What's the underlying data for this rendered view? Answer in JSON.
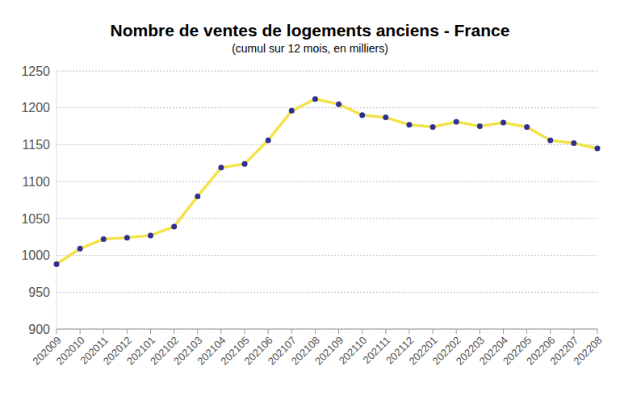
{
  "chart_data": {
    "type": "line",
    "title": "Nombre de ventes de logements anciens - France",
    "subtitle": "(cumul sur 12 mois, en milliers)",
    "categories": [
      "202009",
      "202010",
      "202011",
      "202012",
      "202101",
      "202102",
      "202103",
      "202104",
      "202105",
      "202106",
      "202107",
      "202108",
      "202109",
      "202110",
      "202111",
      "202112",
      "202201",
      "202202",
      "202203",
      "202204",
      "202205",
      "202206",
      "202207",
      "202208"
    ],
    "values": [
      988,
      1009,
      1022,
      1024,
      1027,
      1039,
      1080,
      1119,
      1124,
      1156,
      1196,
      1212,
      1205,
      1190,
      1187,
      1177,
      1174,
      1181,
      1175,
      1180,
      1174,
      1156,
      1152,
      1145
    ],
    "color": "#f2e34a",
    "marker": "circle",
    "ylim": [
      900,
      1250
    ],
    "yticks": [
      900,
      950,
      1000,
      1050,
      1100,
      1150,
      1200,
      1250
    ],
    "grid": true
  }
}
